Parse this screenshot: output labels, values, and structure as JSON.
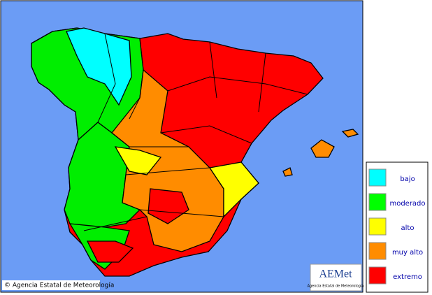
{
  "map": {
    "credit": "© Agencia Estatal de Meteorología",
    "logo": {
      "mark": "AEMet",
      "caption": "Agencia Estatal de Meteorología"
    },
    "legend": [
      {
        "label": "bajo",
        "color": "#00ffff"
      },
      {
        "label": "moderado",
        "color": "#00ff00"
      },
      {
        "label": "alto",
        "color": "#ffff00"
      },
      {
        "label": "muy alto",
        "color": "#ff8c00"
      },
      {
        "label": "extremo",
        "color": "#ff0000"
      }
    ]
  }
}
